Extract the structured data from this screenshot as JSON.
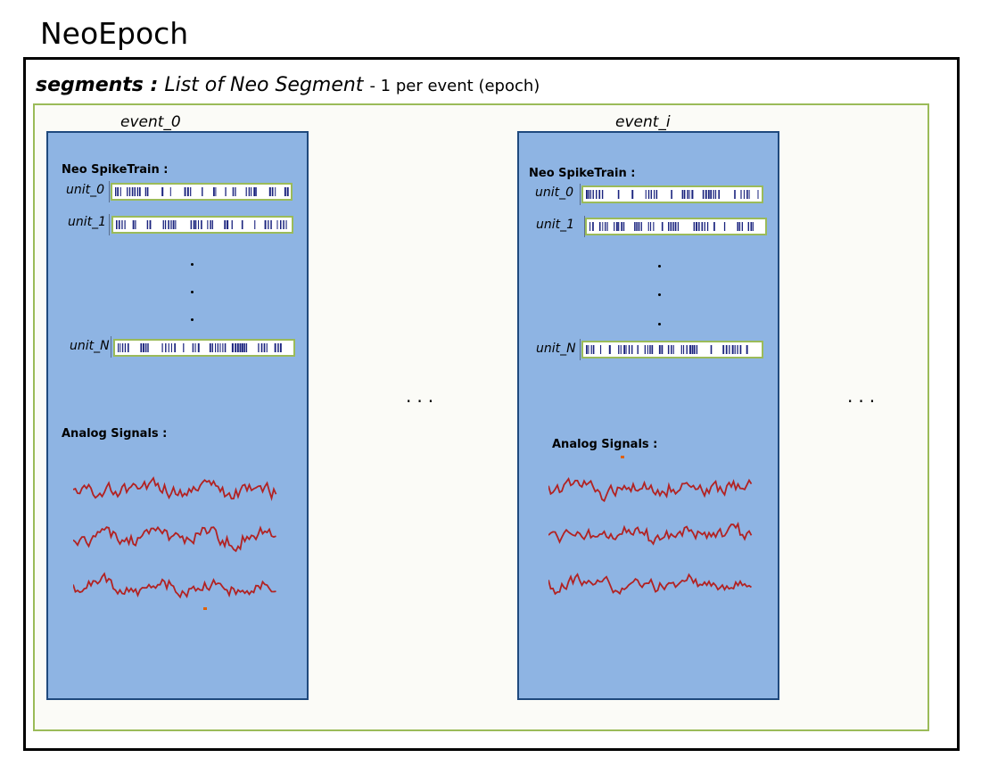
{
  "title": "NeoEpoch",
  "segments_header": {
    "name": "segments :",
    "type": "List of Neo Segment",
    "note": "- 1 per event (epoch)"
  },
  "segments": [
    {
      "event_label": "event_0",
      "spiketrain_header": "Neo SpikeTrain :",
      "units": [
        "unit_0",
        "unit_1",
        "unit_N"
      ],
      "analog_header": "Analog Signals :"
    },
    {
      "event_label": "event_i",
      "spiketrain_header": "Neo SpikeTrain :",
      "units": [
        "unit_0",
        "unit_1",
        "unit_N"
      ],
      "analog_header": "Analog Signals :"
    }
  ],
  "ellipsis": "...",
  "colors": {
    "segment_fill": "#8eb4e3",
    "segment_border": "#1f497d",
    "spike_bar_border": "#9bbb59",
    "spike_color": "#1a237e",
    "signal_color": "#b22222",
    "outer_border": "#000000",
    "inner_border": "#9bbb59"
  }
}
